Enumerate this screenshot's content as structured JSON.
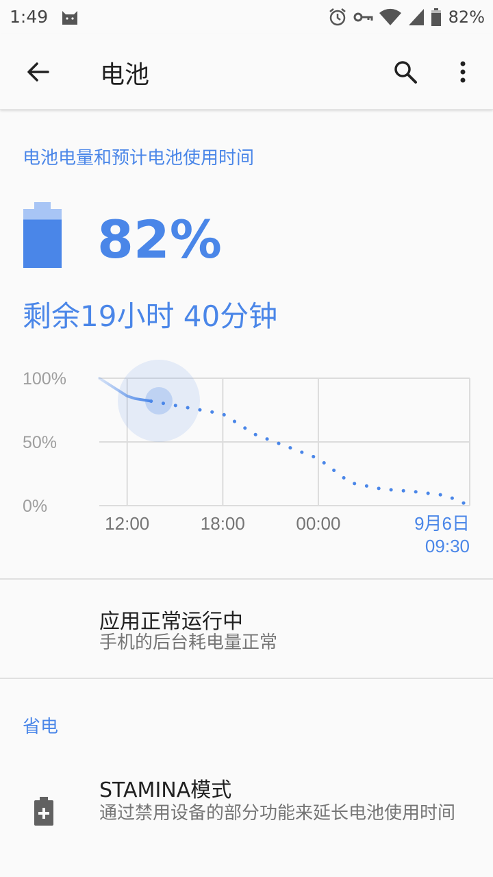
{
  "status_bar": {
    "time": "1:49",
    "battery_percent": "82%",
    "icons": [
      "cat-notification-icon",
      "alarm-icon",
      "vpn-key-icon",
      "wifi-icon",
      "cell-signal-icon",
      "battery-icon"
    ]
  },
  "app_bar": {
    "title": "电池",
    "back_icon": "arrow-back-icon",
    "search_icon": "search-icon",
    "more_icon": "more-vert-icon"
  },
  "battery_section": {
    "header": "电池电量和预计电池使用时间",
    "percent": "82%",
    "remaining_time": "剩余19小时 40分钟",
    "level": 0.82
  },
  "chart_data": {
    "type": "line",
    "y_tick_labels": [
      "100%",
      "50%",
      "0%"
    ],
    "x_tick_labels": [
      "12:00",
      "18:00",
      "00:00"
    ],
    "x_end_label_date": "9月6日",
    "x_end_label_time": "09:30",
    "ylim": [
      0,
      100
    ],
    "series": [
      {
        "values_time": [
          "10:15",
          "12:00",
          "12:30",
          "13:30"
        ],
        "values": [
          100,
          86,
          84,
          82
        ]
      },
      {
        "values_time": [
          "13:30",
          "18:00",
          "20:00",
          "00:00",
          "02:00",
          "04:00",
          "06:00",
          "08:00",
          "09:30"
        ],
        "values": [
          82,
          72,
          56,
          37,
          18,
          13,
          11,
          8,
          0
        ]
      }
    ],
    "colors": {
      "actual": "#4a86e8",
      "projected": "#4a86e8",
      "grid": "#dddddd"
    }
  },
  "app_status": {
    "title": "应用正常运行中",
    "subtitle": "手机的后台耗电量正常"
  },
  "power_saving": {
    "header": "省电",
    "stamina_title": "STAMINA模式",
    "stamina_subtitle": "通过禁用设备的部分功能来延长电池使用时间",
    "stamina_icon": "battery-plus-icon"
  },
  "colors": {
    "accent": "#4a86e8",
    "text_primary": "#212121",
    "text_secondary": "#757575"
  }
}
